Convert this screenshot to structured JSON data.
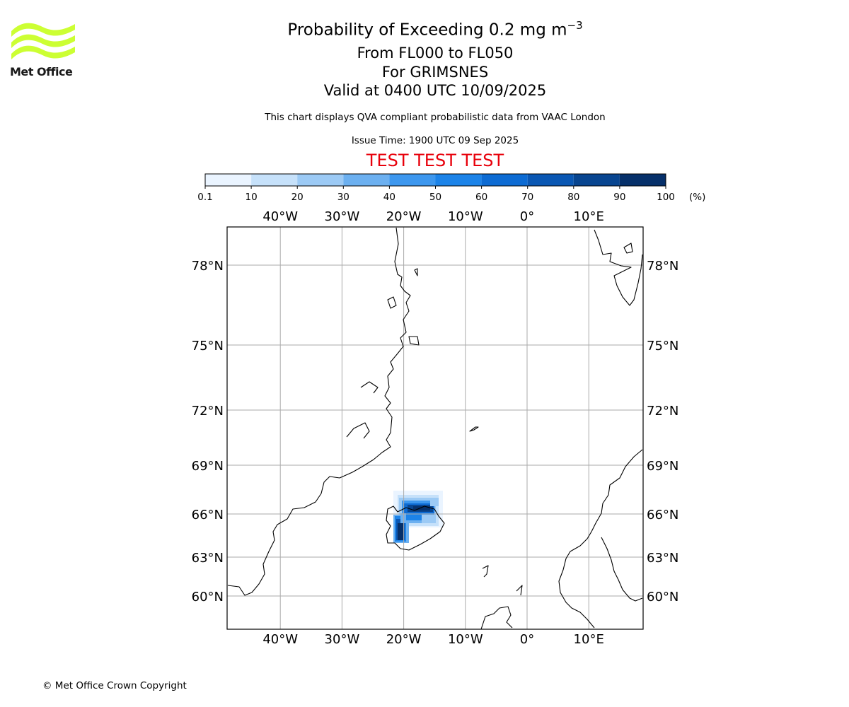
{
  "logo": {
    "name": "Met Office",
    "text": "Met Office",
    "color": "#ccff33"
  },
  "title": {
    "line1": "Probability of Exceeding 0.2 mg m",
    "line1_sup": "−3",
    "line2": "From FL000 to FL050",
    "line3": "For GRIMSNES",
    "line4": "Valid at 0400 UTC 10/09/2025"
  },
  "note": "This chart displays QVA compliant probabilistic data from VAAC London",
  "issue_time": "Issue Time: 1900 UTC 09 Sep 2025",
  "test_banner": {
    "text": "TEST TEST TEST",
    "color": "#e8000b"
  },
  "colorbar": {
    "ticks": [
      "0.1",
      "10",
      "20",
      "30",
      "40",
      "50",
      "60",
      "70",
      "80",
      "90",
      "100"
    ],
    "unit": "(%)",
    "colors": [
      "#eaf4ff",
      "#c6e1fa",
      "#9ccaf5",
      "#6cb0f0",
      "#3d97ee",
      "#1c83e8",
      "#0d6bd3",
      "#0a57b3",
      "#084590",
      "#06306a"
    ]
  },
  "map": {
    "lon_labels": [
      "40°W",
      "30°W",
      "20°W",
      "10°W",
      "0°",
      "10°E"
    ],
    "lon_values": [
      -40,
      -30,
      -20,
      -10,
      0,
      10
    ],
    "lat_labels": [
      "78°N",
      "75°N",
      "72°N",
      "69°N",
      "66°N",
      "63°N",
      "60°N"
    ],
    "lat_values": [
      78,
      75,
      72,
      69,
      66,
      63,
      60
    ],
    "gridline_color": "#aaaaaa",
    "coastline_color": "#000000"
  },
  "chart_data": {
    "type": "heatmap",
    "title": "Probability of Exceeding 0.2 mg m−3",
    "units": "%",
    "range": [
      0.1,
      100
    ],
    "location": "GRIMSNES",
    "region_description_visible": "probability field over Iceland"
  },
  "copyright": "© Met Office Crown Copyright"
}
